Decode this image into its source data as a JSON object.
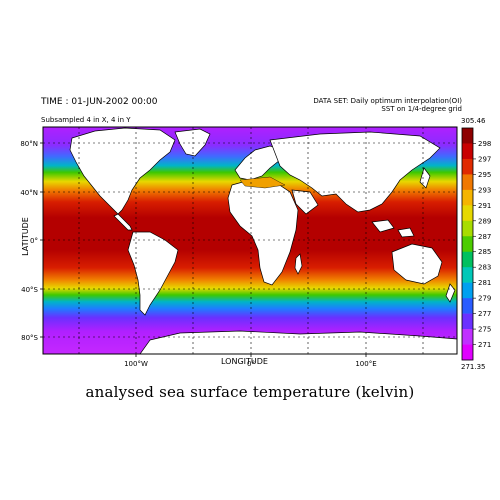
{
  "header": {
    "time": "TIME : 01-JUN-2002 00:00",
    "subsample": "Subsampled 4 in X, 4 in Y",
    "dataset_line1": "DATA SET: Daily optimum interpolation(OI)",
    "dataset_line2": "SST on 1/4-degree grid"
  },
  "axes": {
    "y_title": "LATITUDE",
    "x_title": "LONGITUDE",
    "lat_ticks": [
      {
        "label": "80°N",
        "lat": 80
      },
      {
        "label": "40°N",
        "lat": 40
      },
      {
        "label": "0°",
        "lat": 0
      },
      {
        "label": "40°S",
        "lat": -40
      },
      {
        "label": "80°S",
        "lat": -80
      }
    ],
    "lon_ticks": [
      {
        "label": "100°W",
        "lon": -100
      },
      {
        "label": "0°",
        "lon": 0
      },
      {
        "label": "100°E",
        "lon": 100
      }
    ]
  },
  "colorbar": {
    "max_label": "305.46",
    "min_label": "271.35",
    "levels": [
      "298",
      "297",
      "295",
      "293",
      "291",
      "289",
      "287",
      "285",
      "283",
      "281",
      "279",
      "277",
      "275",
      "271"
    ],
    "colors": [
      "#8e0000",
      "#c80000",
      "#e02a00",
      "#f07800",
      "#f5b400",
      "#e6d800",
      "#a8dc00",
      "#4ccc00",
      "#00c060",
      "#00c8b8",
      "#00a0f0",
      "#2a5cff",
      "#6a30ff",
      "#c030ff",
      "#e000ff"
    ]
  },
  "caption": "analysed sea surface temperature (kelvin)"
}
